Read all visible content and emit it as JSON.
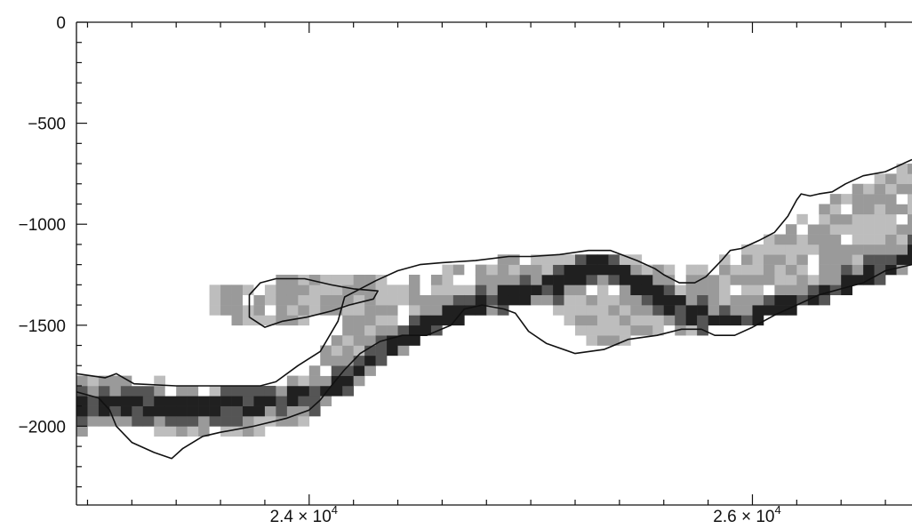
{
  "chart_data": {
    "type": "heatmap",
    "title": "",
    "xlabel": "",
    "ylabel": "",
    "xlim": [
      22950,
      26720
    ],
    "ylim": [
      -2390,
      0
    ],
    "grid": false,
    "legend": "none",
    "x_ticks": [
      {
        "value": 24000,
        "mantissa": "2.4",
        "times": "×",
        "base": "10",
        "exp": "4"
      },
      {
        "value": 26000,
        "mantissa": "2.6",
        "times": "×",
        "base": "10",
        "exp": "4"
      }
    ],
    "y_ticks": [
      {
        "value": 0,
        "label": "0"
      },
      {
        "value": -500,
        "label": "−500"
      },
      {
        "value": -1000,
        "label": "−1000"
      },
      {
        "value": -1500,
        "label": "−1500"
      },
      {
        "value": -2000,
        "label": "−2000"
      }
    ],
    "x_minor_step": 200,
    "y_minor_step": 100,
    "cell_size": {
      "dx": 50,
      "dy": 50
    },
    "colors": {
      "light": "#bdbdbd",
      "medium": "#9a9a9a",
      "dark": "#555555",
      "darkest": "#202020",
      "outline": "#111111"
    },
    "band_profile": [
      {
        "x": 22950,
        "top": -1760,
        "bottom": -2030,
        "ridge": -1910
      },
      {
        "x": 23200,
        "top": -1760,
        "bottom": -2010,
        "ridge": -1900
      },
      {
        "x": 23500,
        "top": -1790,
        "bottom": -2060,
        "ridge": -1920
      },
      {
        "x": 23800,
        "top": -1790,
        "bottom": -2030,
        "ridge": -1880
      },
      {
        "x": 24000,
        "top": -1720,
        "bottom": -1970,
        "ridge": -1860
      },
      {
        "x": 24150,
        "top": -1500,
        "bottom": -1850,
        "ridge": -1780
      },
      {
        "x": 24300,
        "top": -1350,
        "bottom": -1720,
        "ridge": -1660
      },
      {
        "x": 24500,
        "top": -1260,
        "bottom": -1580,
        "ridge": -1520
      },
      {
        "x": 24700,
        "top": -1200,
        "bottom": -1480,
        "ridge": -1420
      },
      {
        "x": 24900,
        "top": -1170,
        "bottom": -1420,
        "ridge": -1350
      },
      {
        "x": 25100,
        "top": -1140,
        "bottom": -1420,
        "ridge": -1310
      },
      {
        "x": 25300,
        "top": -1130,
        "bottom": -1600,
        "ridge": -1200
      },
      {
        "x": 25500,
        "top": -1180,
        "bottom": -1570,
        "ridge": -1300
      },
      {
        "x": 25700,
        "top": -1230,
        "bottom": -1560,
        "ridge": -1430
      },
      {
        "x": 25900,
        "top": -1160,
        "bottom": -1500,
        "ridge": -1500
      },
      {
        "x": 26100,
        "top": -1050,
        "bottom": -1460,
        "ridge": -1420
      },
      {
        "x": 26300,
        "top": -920,
        "bottom": -1400,
        "ridge": -1360
      },
      {
        "x": 26500,
        "top": -800,
        "bottom": -1310,
        "ridge": -1260
      },
      {
        "x": 26720,
        "top": -700,
        "bottom": -1220,
        "ridge": -1150
      }
    ],
    "branch_profile": [
      {
        "x": 23550,
        "top": -1330,
        "bottom": -1450
      },
      {
        "x": 23750,
        "top": -1290,
        "bottom": -1520
      },
      {
        "x": 23950,
        "top": -1260,
        "bottom": -1490
      },
      {
        "x": 24150,
        "top": -1230,
        "bottom": -1430
      },
      {
        "x": 24350,
        "top": -1250,
        "bottom": -1400
      }
    ],
    "outlines": [
      {
        "name": "",
        "points": [
          [
            22950,
            -1830
          ],
          [
            23050,
            -1860
          ],
          [
            23100,
            -1920
          ],
          [
            23130,
            -2000
          ],
          [
            23200,
            -2080
          ],
          [
            23300,
            -2130
          ],
          [
            23380,
            -2160
          ],
          [
            23430,
            -2110
          ],
          [
            23520,
            -2050
          ],
          [
            23600,
            -2030
          ],
          [
            23750,
            -2000
          ],
          [
            23900,
            -1960
          ],
          [
            24000,
            -1920
          ],
          [
            24050,
            -1870
          ],
          [
            24100,
            -1800
          ],
          [
            24160,
            -1720
          ],
          [
            24230,
            -1640
          ],
          [
            24320,
            -1580
          ],
          [
            24420,
            -1550
          ],
          [
            24530,
            -1550
          ],
          [
            24640,
            -1500
          ],
          [
            24700,
            -1420
          ],
          [
            24780,
            -1400
          ],
          [
            24880,
            -1420
          ],
          [
            24930,
            -1440
          ],
          [
            24990,
            -1530
          ],
          [
            25070,
            -1590
          ],
          [
            25200,
            -1640
          ],
          [
            25330,
            -1620
          ],
          [
            25440,
            -1570
          ],
          [
            25570,
            -1550
          ],
          [
            25680,
            -1520
          ],
          [
            25770,
            -1520
          ],
          [
            25830,
            -1550
          ],
          [
            25920,
            -1550
          ],
          [
            26000,
            -1510
          ],
          [
            26100,
            -1450
          ],
          [
            26200,
            -1400
          ],
          [
            26300,
            -1350
          ],
          [
            26400,
            -1320
          ],
          [
            26500,
            -1290
          ],
          [
            26600,
            -1230
          ],
          [
            26720,
            -1200
          ]
        ]
      },
      {
        "name": "",
        "points": [
          [
            22950,
            -1740
          ],
          [
            23080,
            -1760
          ],
          [
            23130,
            -1740
          ],
          [
            23210,
            -1790
          ],
          [
            23400,
            -1800
          ],
          [
            23600,
            -1800
          ],
          [
            23780,
            -1800
          ],
          [
            23850,
            -1780
          ],
          [
            23950,
            -1700
          ],
          [
            24050,
            -1630
          ],
          [
            24130,
            -1480
          ],
          [
            24160,
            -1360
          ],
          [
            24230,
            -1320
          ],
          [
            24300,
            -1280
          ],
          [
            24400,
            -1230
          ],
          [
            24500,
            -1200
          ],
          [
            24600,
            -1190
          ],
          [
            24750,
            -1180
          ],
          [
            24900,
            -1160
          ],
          [
            25000,
            -1160
          ],
          [
            25130,
            -1150
          ],
          [
            25260,
            -1130
          ],
          [
            25360,
            -1130
          ],
          [
            25480,
            -1180
          ],
          [
            25560,
            -1220
          ],
          [
            25600,
            -1250
          ],
          [
            25670,
            -1290
          ],
          [
            25740,
            -1290
          ],
          [
            25790,
            -1260
          ],
          [
            25860,
            -1180
          ],
          [
            25900,
            -1130
          ],
          [
            25950,
            -1120
          ],
          [
            26030,
            -1080
          ],
          [
            26100,
            -1040
          ],
          [
            26160,
            -960
          ],
          [
            26200,
            -880
          ],
          [
            26220,
            -850
          ],
          [
            26260,
            -860
          ],
          [
            26300,
            -850
          ],
          [
            26360,
            -840
          ],
          [
            26420,
            -800
          ],
          [
            26500,
            -760
          ],
          [
            26600,
            -740
          ],
          [
            26720,
            -680
          ]
        ]
      },
      {
        "name": "",
        "points": [
          [
            23730,
            -1350
          ],
          [
            23730,
            -1460
          ],
          [
            23800,
            -1510
          ],
          [
            23880,
            -1480
          ],
          [
            23990,
            -1460
          ],
          [
            24100,
            -1430
          ],
          [
            24180,
            -1400
          ],
          [
            24290,
            -1370
          ],
          [
            24310,
            -1330
          ],
          [
            24200,
            -1320
          ],
          [
            24100,
            -1300
          ],
          [
            23980,
            -1270
          ],
          [
            23850,
            -1270
          ],
          [
            23780,
            -1290
          ]
        ]
      }
    ]
  }
}
